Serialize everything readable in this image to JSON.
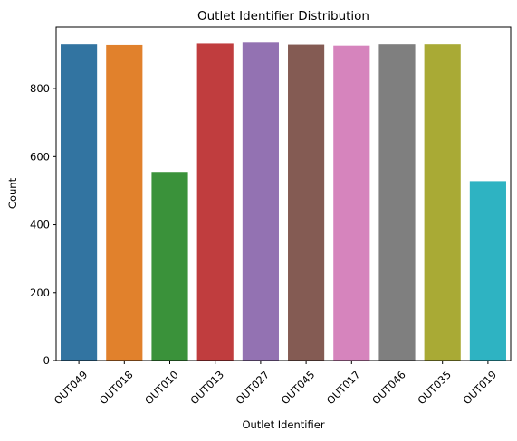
{
  "chart_data": {
    "type": "bar",
    "title": "Outlet Identifier Distribution",
    "xlabel": "Outlet Identifier",
    "ylabel": "Count",
    "categories": [
      "OUT049",
      "OUT018",
      "OUT010",
      "OUT013",
      "OUT027",
      "OUT045",
      "OUT017",
      "OUT046",
      "OUT035",
      "OUT019"
    ],
    "values": [
      930,
      928,
      555,
      932,
      935,
      929,
      926,
      930,
      930,
      528
    ],
    "colors": [
      "#3274a1",
      "#e1812c",
      "#3a923a",
      "#c03d3e",
      "#9372b2",
      "#845b53",
      "#d684bd",
      "#7f7f7f",
      "#a9aa35",
      "#2eb3c2"
    ],
    "ylim": [
      0,
      981
    ],
    "yticks": [
      0,
      200,
      400,
      600,
      800
    ],
    "grid": false,
    "legend": false
  }
}
